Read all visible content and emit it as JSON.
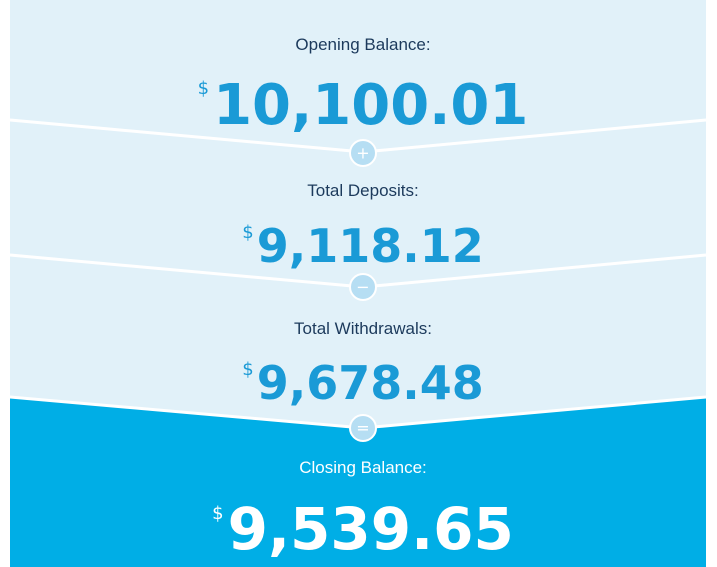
{
  "sections": [
    {
      "label": "Opening Balance:",
      "currency": "$",
      "amount": "10,100.01"
    },
    {
      "label": "Total Deposits:",
      "currency": "$",
      "amount": "9,118.12"
    },
    {
      "label": "Total Withdrawals:",
      "currency": "$",
      "amount": "9,678.48"
    },
    {
      "label": "Closing Balance:",
      "currency": "$",
      "amount": "9,539.65"
    }
  ],
  "operators": [
    "+",
    "−",
    "="
  ]
}
